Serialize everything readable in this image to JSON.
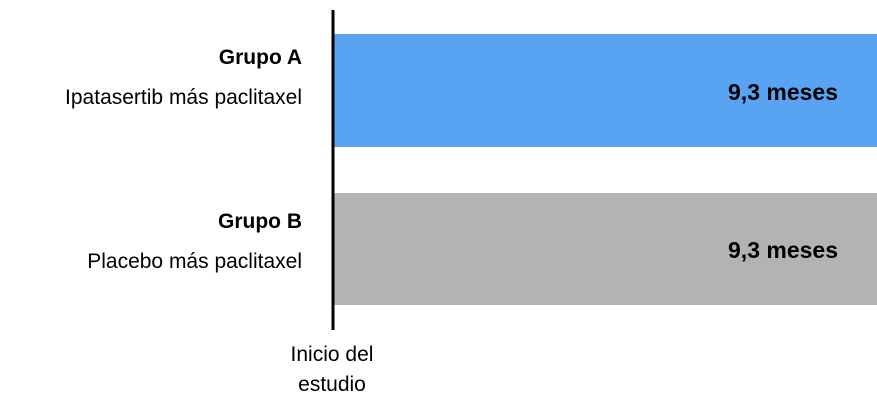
{
  "chart_data": {
    "type": "bar",
    "orientation": "horizontal",
    "categories": [
      {
        "group": "Grupo A",
        "description": "Ipatasertib más paclitaxel"
      },
      {
        "group": "Grupo B",
        "description": "Placebo más paclitaxel"
      }
    ],
    "values": [
      9.3,
      9.3
    ],
    "value_labels": [
      "9,3 meses",
      "9,3 meses"
    ],
    "colors": [
      "#58a3f2",
      "#b3b3b3"
    ],
    "axis_caption": [
      "Inicio del",
      "estudio"
    ],
    "title": "",
    "grid": false,
    "legend": "none"
  }
}
